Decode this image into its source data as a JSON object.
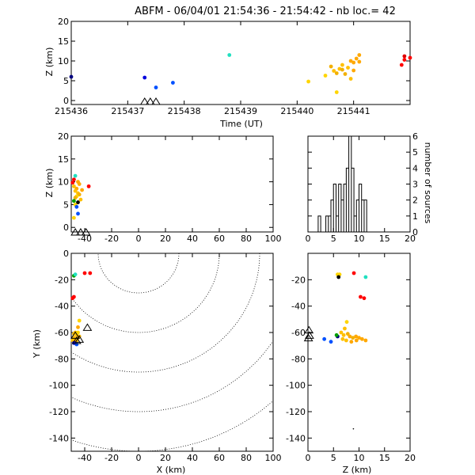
{
  "title": "ABFM - 06/04/01 21:54:36 - 21:54:42 - nb loc.=      42",
  "chart_data": [
    {
      "type": "scatter",
      "panel": "time-height",
      "xlabel": "Time (UT)",
      "ylabel": "Z (km)",
      "xlim": [
        215436,
        215442
      ],
      "ylim": [
        -1,
        20
      ],
      "xticks": [
        215436,
        215437,
        215438,
        215439,
        215440,
        215441
      ],
      "yticks": [
        0,
        5,
        10,
        15,
        20
      ],
      "points": [
        {
          "x": 215436.0,
          "y": 6.0,
          "color": "#000080"
        },
        {
          "x": 215437.3,
          "y": 5.8,
          "color": "#0000dd"
        },
        {
          "x": 215437.5,
          "y": 3.3,
          "color": "#0050ff"
        },
        {
          "x": 215437.8,
          "y": 4.5,
          "color": "#0050ff"
        },
        {
          "x": 215438.8,
          "y": 11.5,
          "color": "#20e0c0"
        },
        {
          "x": 215440.2,
          "y": 4.8,
          "color": "#ffd500"
        },
        {
          "x": 215440.5,
          "y": 6.3,
          "color": "#ffd500"
        },
        {
          "x": 215440.6,
          "y": 8.6,
          "color": "#f2b000"
        },
        {
          "x": 215440.65,
          "y": 7.5,
          "color": "#ffc000"
        },
        {
          "x": 215440.7,
          "y": 2.1,
          "color": "#ffd500"
        },
        {
          "x": 215440.7,
          "y": 6.9,
          "color": "#f2b000"
        },
        {
          "x": 215440.75,
          "y": 8.0,
          "color": "#ffc000"
        },
        {
          "x": 215440.8,
          "y": 7.8,
          "color": "#f2b000"
        },
        {
          "x": 215440.8,
          "y": 9.0,
          "color": "#ffc000"
        },
        {
          "x": 215440.85,
          "y": 6.7,
          "color": "#f2b000"
        },
        {
          "x": 215440.9,
          "y": 8.3,
          "color": "#ffc000"
        },
        {
          "x": 215440.95,
          "y": 5.5,
          "color": "#ffc000"
        },
        {
          "x": 215440.95,
          "y": 10.0,
          "color": "#ffa800"
        },
        {
          "x": 215441.0,
          "y": 7.6,
          "color": "#ffa800"
        },
        {
          "x": 215441.0,
          "y": 9.6,
          "color": "#ffa800"
        },
        {
          "x": 215441.05,
          "y": 10.6,
          "color": "#ffa800"
        },
        {
          "x": 215441.1,
          "y": 11.5,
          "color": "#ffa800"
        },
        {
          "x": 215441.1,
          "y": 9.8,
          "color": "#ffa800"
        },
        {
          "x": 215441.85,
          "y": 9.0,
          "color": "#ff0000"
        },
        {
          "x": 215441.9,
          "y": 10.3,
          "color": "#ff0000"
        },
        {
          "x": 215441.9,
          "y": 11.2,
          "color": "#e00000"
        },
        {
          "x": 215442.0,
          "y": 10.8,
          "color": "#ff0000"
        }
      ],
      "stations": [
        215437.3,
        215437.4,
        215437.5
      ]
    },
    {
      "type": "scatter",
      "panel": "x-z",
      "xlabel": "",
      "ylabel": "Z (km)",
      "xlim": [
        -50,
        100
      ],
      "ylim": [
        -1,
        20
      ],
      "xticks": [
        -40,
        -20,
        0,
        20,
        40,
        60,
        80,
        100
      ],
      "yticks": [
        0,
        5,
        10,
        15,
        20
      ],
      "points": [
        {
          "x": -48,
          "y": 10.5,
          "color": "#ff0000"
        },
        {
          "x": -49,
          "y": 9.8,
          "color": "#ff0000"
        },
        {
          "x": -47,
          "y": 11.3,
          "color": "#20e0c0"
        },
        {
          "x": -37,
          "y": 9.0,
          "color": "#ff0000"
        },
        {
          "x": -48,
          "y": 9.0,
          "color": "#ffc000"
        },
        {
          "x": -46,
          "y": 8.5,
          "color": "#ffa800"
        },
        {
          "x": -47,
          "y": 8.0,
          "color": "#ffc000"
        },
        {
          "x": -45,
          "y": 7.5,
          "color": "#ffc000"
        },
        {
          "x": -44,
          "y": 7.2,
          "color": "#f2b000"
        },
        {
          "x": -46,
          "y": 6.8,
          "color": "#ffd500"
        },
        {
          "x": -47,
          "y": 6.5,
          "color": "#f2b000"
        },
        {
          "x": -43,
          "y": 6.1,
          "color": "#ffc000"
        },
        {
          "x": -45,
          "y": 10.0,
          "color": "#ffa800"
        },
        {
          "x": -42,
          "y": 8.2,
          "color": "#ffa800"
        },
        {
          "x": -44,
          "y": 9.5,
          "color": "#ffa800"
        },
        {
          "x": -48,
          "y": 5.8,
          "color": "#00a000"
        },
        {
          "x": -47,
          "y": 5.0,
          "color": "#ffd500"
        },
        {
          "x": -45,
          "y": 5.5,
          "color": "#000000"
        },
        {
          "x": -46,
          "y": 4.5,
          "color": "#0050ff"
        },
        {
          "x": -45,
          "y": 3.0,
          "color": "#0050ff"
        },
        {
          "x": -48,
          "y": 2.1,
          "color": "#ffd500"
        }
      ],
      "stations": [
        -47,
        -43,
        -39
      ]
    },
    {
      "type": "bar",
      "panel": "histogram",
      "xlabel": "",
      "ylabel": "number of sources",
      "xlim": [
        0,
        20
      ],
      "ylim": [
        0,
        6
      ],
      "xticks": [
        0,
        5,
        10,
        15,
        20
      ],
      "yticks": [
        0,
        1,
        2,
        3,
        4,
        5,
        6
      ],
      "bin_width": 0.5,
      "categories": [
        2.0,
        2.5,
        3.0,
        3.5,
        4.0,
        4.5,
        5.0,
        5.5,
        6.0,
        6.5,
        7.0,
        7.5,
        8.0,
        8.5,
        9.0,
        9.5,
        10.0,
        10.5,
        11.0,
        11.5,
        12.0
      ],
      "values": [
        1,
        0,
        0,
        1,
        1,
        2,
        3,
        1,
        3,
        2,
        3,
        4,
        6,
        4,
        1,
        2,
        3,
        2,
        2,
        0,
        0
      ]
    },
    {
      "type": "scatter",
      "panel": "x-y",
      "xlabel": "X (km)",
      "ylabel": "Y (km)",
      "xlim": [
        -50,
        100
      ],
      "ylim": [
        -150,
        0
      ],
      "xticks": [
        -40,
        -20,
        0,
        20,
        40,
        60,
        80,
        100
      ],
      "yticks": [
        -140,
        -120,
        -100,
        -80,
        -60,
        -40,
        -20,
        0
      ],
      "range_rings_km": [
        30,
        60,
        90,
        120,
        150,
        180
      ],
      "ring_center": [
        0,
        0
      ],
      "points": [
        {
          "x": -48,
          "y": -17,
          "color": "#00a000"
        },
        {
          "x": -47,
          "y": -16,
          "color": "#20e0c0"
        },
        {
          "x": -40,
          "y": -15,
          "color": "#ff0000"
        },
        {
          "x": -36,
          "y": -15,
          "color": "#ff0000"
        },
        {
          "x": -49,
          "y": -34,
          "color": "#ff0000"
        },
        {
          "x": -48,
          "y": -33,
          "color": "#ff0000"
        },
        {
          "x": -44,
          "y": -51,
          "color": "#ffd500"
        },
        {
          "x": -45,
          "y": -56,
          "color": "#ffa800"
        },
        {
          "x": -47,
          "y": -60,
          "color": "#ffc000"
        },
        {
          "x": -46,
          "y": -62,
          "color": "#ffc000"
        },
        {
          "x": -48,
          "y": -64,
          "color": "#f2b000"
        },
        {
          "x": -47,
          "y": -65,
          "color": "#ffc000"
        },
        {
          "x": -45,
          "y": -64,
          "color": "#ffa800"
        },
        {
          "x": -46,
          "y": -66,
          "color": "#ffc000"
        },
        {
          "x": -44,
          "y": -63,
          "color": "#f2b000"
        },
        {
          "x": -49,
          "y": -66,
          "color": "#ffc000"
        },
        {
          "x": -48,
          "y": -61,
          "color": "#ffc000"
        },
        {
          "x": -45,
          "y": -60,
          "color": "#ffd500"
        },
        {
          "x": -47,
          "y": -67,
          "color": "#ffa800"
        },
        {
          "x": -46,
          "y": -69,
          "color": "#0050ff"
        },
        {
          "x": -48,
          "y": -68,
          "color": "#0000dd"
        }
      ],
      "stations": [
        [
          -47,
          -62
        ],
        [
          -46,
          -66
        ],
        [
          -44,
          -65
        ],
        [
          -38,
          -56
        ]
      ]
    },
    {
      "type": "scatter",
      "panel": "z-y",
      "xlabel": "Z (km)",
      "ylabel": "",
      "xlim": [
        0,
        20
      ],
      "ylim": [
        -150,
        0
      ],
      "xticks": [
        0,
        5,
        10,
        15,
        20
      ],
      "yticks": [
        -140,
        -120,
        -100,
        -80,
        -60,
        -40,
        -20
      ],
      "points": [
        {
          "x": 5.8,
          "y": -16,
          "color": "#ffd500"
        },
        {
          "x": 6.2,
          "y": -16,
          "color": "#ffd500"
        },
        {
          "x": 6.0,
          "y": -18,
          "color": "#000000"
        },
        {
          "x": 9.0,
          "y": -15,
          "color": "#ff0000"
        },
        {
          "x": 11.3,
          "y": -18,
          "color": "#20e0c0"
        },
        {
          "x": 10.3,
          "y": -33,
          "color": "#ff0000"
        },
        {
          "x": 11.0,
          "y": -34,
          "color": "#ff0000"
        },
        {
          "x": 7.6,
          "y": -52,
          "color": "#ffd500"
        },
        {
          "x": 7.2,
          "y": -57,
          "color": "#ffc000"
        },
        {
          "x": 6.5,
          "y": -60,
          "color": "#ffc000"
        },
        {
          "x": 7.0,
          "y": -62,
          "color": "#ffc000"
        },
        {
          "x": 7.8,
          "y": -61,
          "color": "#f2b000"
        },
        {
          "x": 8.2,
          "y": -63,
          "color": "#ffa800"
        },
        {
          "x": 8.8,
          "y": -64,
          "color": "#f2b000"
        },
        {
          "x": 9.4,
          "y": -63,
          "color": "#ffa800"
        },
        {
          "x": 10.0,
          "y": -64,
          "color": "#ffa800"
        },
        {
          "x": 10.6,
          "y": -65,
          "color": "#ffa800"
        },
        {
          "x": 11.3,
          "y": -66,
          "color": "#ffa800"
        },
        {
          "x": 6.8,
          "y": -65,
          "color": "#ffc000"
        },
        {
          "x": 7.5,
          "y": -66,
          "color": "#ffc000"
        },
        {
          "x": 8.5,
          "y": -67,
          "color": "#ffa800"
        },
        {
          "x": 9.5,
          "y": -66,
          "color": "#ffa800"
        },
        {
          "x": 3.2,
          "y": -65,
          "color": "#0050ff"
        },
        {
          "x": 4.5,
          "y": -67,
          "color": "#0050ff"
        },
        {
          "x": 5.8,
          "y": -63,
          "color": "#000080"
        },
        {
          "x": 5.6,
          "y": -62,
          "color": "#00a000"
        }
      ],
      "stations": [
        [
          0.2,
          -58
        ],
        [
          0.3,
          -62
        ],
        [
          0.1,
          -64
        ]
      ],
      "dots": [
        [
          8.9,
          -133
        ]
      ]
    }
  ]
}
